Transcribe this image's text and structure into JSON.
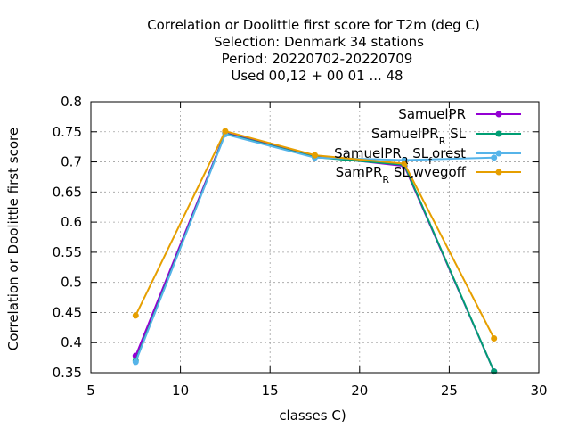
{
  "chart_data": {
    "type": "line",
    "title_lines": [
      "Correlation or Doolittle first score  for T2m (deg C)",
      "Selection: Denmark     34 stations",
      "Period: 20220702-20220709",
      "Used  00,12  + 00 01 ... 48"
    ],
    "xlabel": "classes C)",
    "ylabel": "Correlation or Doolittle first score",
    "xlim": [
      5,
      30
    ],
    "ylim": [
      0.35,
      0.8
    ],
    "xticks": [
      5,
      10,
      15,
      20,
      25,
      30
    ],
    "yticks": [
      0.35,
      0.4,
      0.45,
      0.5,
      0.55,
      0.6,
      0.65,
      0.7,
      0.75,
      0.8
    ],
    "xtick_labels": [
      "5",
      "10",
      "15",
      "20",
      "25",
      "30"
    ],
    "ytick_labels": [
      "0.35",
      "0.4",
      "0.45",
      "0.5",
      "0.55",
      "0.6",
      "0.65",
      "0.7",
      "0.75",
      "0.8"
    ],
    "grid": true,
    "legend_position": "top-right",
    "series": [
      {
        "name": "SamuelPR",
        "color": "#9400d3",
        "x": [
          7.5,
          12.5,
          17.5,
          22.5,
          27.5
        ],
        "y": [
          0.378,
          0.748,
          0.71,
          0.693,
          0.352
        ]
      },
      {
        "name": "SamuelPR_R SL",
        "color": "#009e73",
        "x": [
          7.5,
          12.5,
          17.5,
          22.5,
          27.5
        ],
        "y": [
          0.37,
          0.747,
          0.708,
          0.695,
          0.352
        ]
      },
      {
        "name": "SamuelPR_R SL_f orest",
        "color": "#56b4e9",
        "x": [
          7.5,
          12.5,
          17.5,
          22.5,
          27.5
        ],
        "y": [
          0.368,
          0.746,
          0.707,
          0.703,
          0.707
        ]
      },
      {
        "name": "SamPR_R SL_f wvegoff",
        "color": "#e69f00",
        "x": [
          7.5,
          12.5,
          17.5,
          22.5,
          27.5
        ],
        "y": [
          0.445,
          0.751,
          0.711,
          0.697,
          0.407
        ]
      }
    ]
  }
}
